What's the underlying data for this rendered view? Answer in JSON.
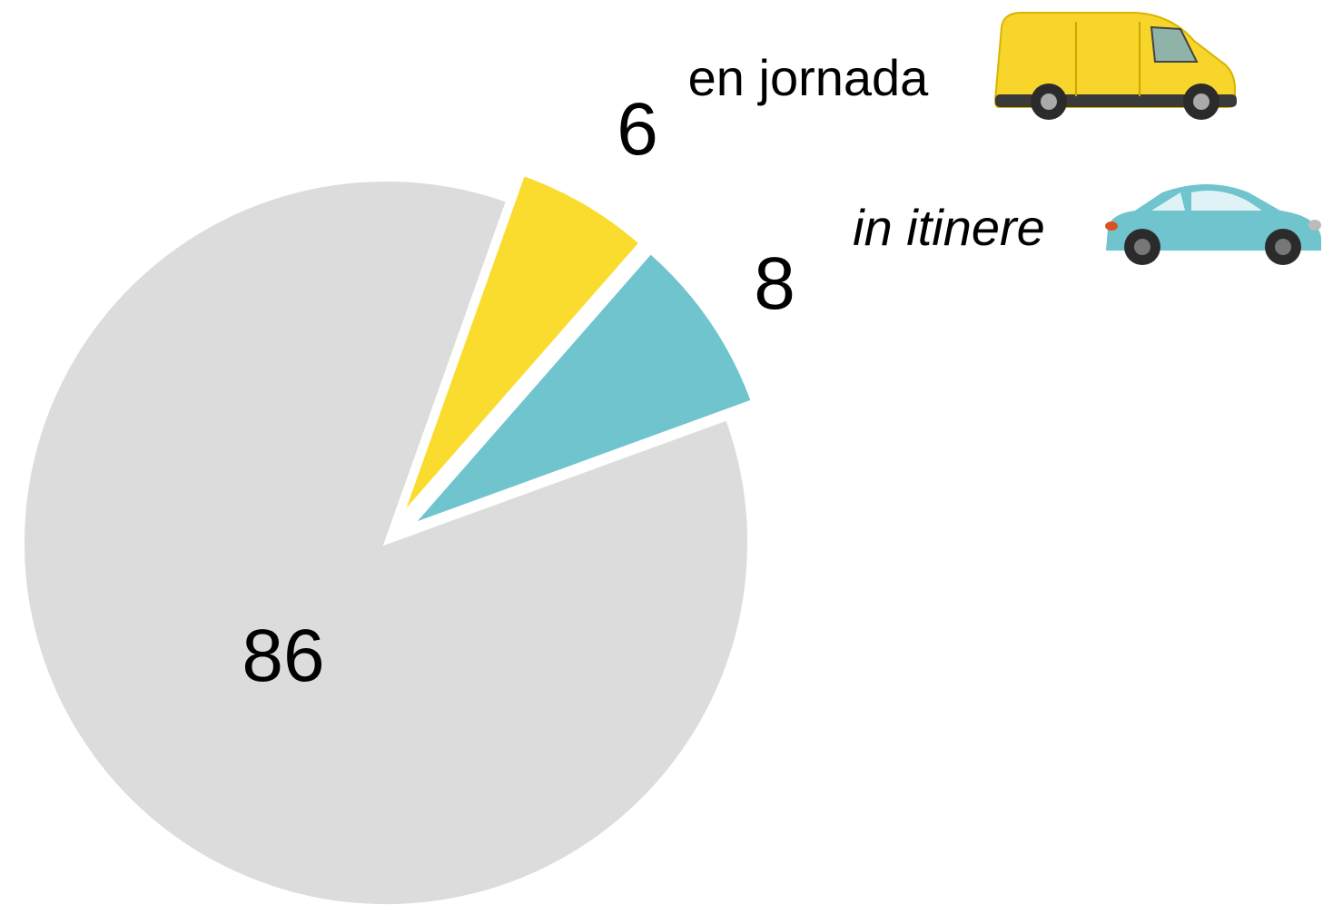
{
  "chart_data": {
    "type": "pie",
    "categories": [
      "en jornada",
      "in itinere",
      null
    ],
    "values": [
      6,
      8,
      86
    ],
    "colors": [
      "#f9dc2e",
      "#6fc4ce",
      "#dcdcdc"
    ]
  }
}
